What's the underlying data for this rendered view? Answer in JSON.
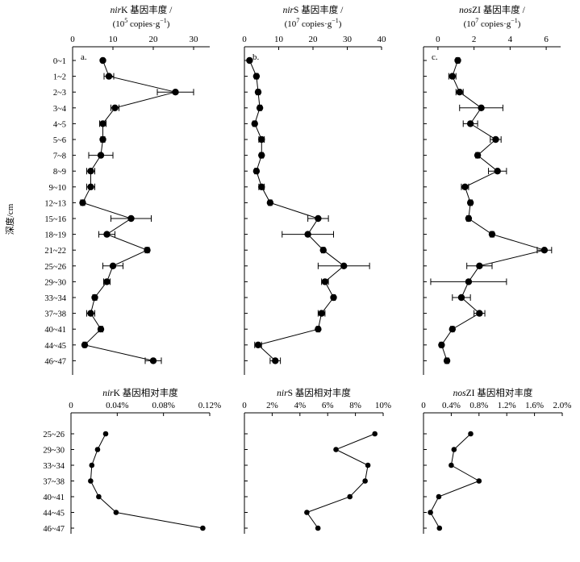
{
  "colors": {
    "ink": "#000000",
    "background": "#ffffff"
  },
  "shared": {
    "depth_axis_label": "深度/cm",
    "depth_categories_top": [
      "0~1",
      "1~2",
      "2~3",
      "3~4",
      "4~5",
      "5~6",
      "7~8",
      "8~9",
      "9~10",
      "12~13",
      "15~16",
      "18~19",
      "21~22",
      "25~26",
      "29~30",
      "33~34",
      "37~38",
      "40~41",
      "44~45",
      "46~47"
    ],
    "depth_categories_bottom": [
      "25~26",
      "29~30",
      "33~34",
      "37~38",
      "40~41",
      "44~45",
      "46~47"
    ]
  },
  "chart_data": [
    {
      "id": "top-a",
      "type": "line",
      "gene_italic": "nir",
      "gene_plain": "K",
      "title_rest": " 基因丰度 /",
      "unit_prefix": "(10",
      "unit_exp": "5",
      "unit_mid": " copies·g",
      "unit_exp2": "−1",
      "unit_suffix": ")",
      "panel_label": "a.",
      "xlim": [
        0,
        34
      ],
      "xticks": [
        0,
        10,
        20,
        30
      ],
      "xtick_labels": [
        "0",
        "10",
        "20",
        "30"
      ],
      "categories": [
        "0~1",
        "1~2",
        "2~3",
        "3~4",
        "4~5",
        "5~6",
        "7~8",
        "8~9",
        "9~10",
        "12~13",
        "15~16",
        "18~19",
        "21~22",
        "25~26",
        "29~30",
        "33~34",
        "37~38",
        "40~41",
        "44~45",
        "46~47"
      ],
      "values": [
        7.5,
        9,
        25.5,
        10.5,
        7.5,
        7.5,
        7,
        4.5,
        4.5,
        2.5,
        14.5,
        8.5,
        18.5,
        10,
        8.5,
        5.5,
        4.5,
        7,
        3,
        20
      ],
      "errors": [
        0.3,
        1.2,
        4.5,
        1,
        0.8,
        0.5,
        3,
        1,
        1,
        0.5,
        5,
        2,
        0.5,
        2.5,
        0.8,
        0.5,
        1,
        0.5,
        0.4,
        2
      ]
    },
    {
      "id": "top-b",
      "type": "line",
      "gene_italic": "nir",
      "gene_plain": "S",
      "title_rest": " 基因丰度 /",
      "unit_prefix": "(10",
      "unit_exp": "7",
      "unit_mid": " copies·g",
      "unit_exp2": "−1",
      "unit_suffix": ")",
      "panel_label": "b.",
      "xlim": [
        0,
        40
      ],
      "xticks": [
        0,
        10,
        20,
        30,
        40
      ],
      "xtick_labels": [
        "0",
        "10",
        "20",
        "30",
        "40"
      ],
      "categories": [
        "0~1",
        "1~2",
        "2~3",
        "3~4",
        "4~5",
        "5~6",
        "7~8",
        "8~9",
        "9~10",
        "12~13",
        "15~16",
        "18~19",
        "21~22",
        "25~26",
        "29~30",
        "33~34",
        "37~38",
        "40~41",
        "44~45",
        "46~47"
      ],
      "values": [
        1.5,
        3.5,
        4,
        4.5,
        3,
        5,
        5,
        3.5,
        5,
        7.5,
        21.5,
        18.5,
        23,
        29,
        23.5,
        26,
        22.5,
        21.5,
        4,
        9
      ],
      "errors": [
        0.3,
        0.5,
        0.5,
        0.5,
        0.5,
        0.8,
        0.5,
        0.5,
        0.8,
        0.5,
        3,
        7.5,
        0.5,
        7.5,
        1,
        0.5,
        1,
        0.5,
        1,
        1.5
      ]
    },
    {
      "id": "top-c",
      "type": "line",
      "gene_italic": "nos",
      "gene_plain": "ZI",
      "title_rest": " 基因丰度 /",
      "unit_prefix": "(10",
      "unit_exp": "7",
      "unit_mid": " copies·g",
      "unit_exp2": "−1",
      "unit_suffix": ")",
      "panel_label": "c.",
      "xlim": [
        -0.8,
        6.8
      ],
      "xticks": [
        0,
        2,
        4,
        6
      ],
      "xtick_labels": [
        "0",
        "2",
        "4",
        "6"
      ],
      "categories": [
        "0~1",
        "1~2",
        "2~3",
        "3~4",
        "4~5",
        "5~6",
        "7~8",
        "8~9",
        "9~10",
        "12~13",
        "15~16",
        "18~19",
        "21~22",
        "25~26",
        "29~30",
        "33~34",
        "37~38",
        "40~41",
        "44~45",
        "46~47"
      ],
      "values": [
        1.1,
        0.8,
        1.2,
        2.4,
        1.8,
        3.2,
        2.2,
        3.3,
        1.5,
        1.8,
        1.7,
        3.0,
        5.9,
        2.3,
        1.7,
        1.3,
        2.3,
        0.8,
        0.2,
        0.5
      ],
      "errors": [
        0.1,
        0.2,
        0.2,
        1.2,
        0.4,
        0.3,
        0.1,
        0.5,
        0.2,
        0.1,
        0.1,
        0.1,
        0.4,
        0.7,
        2.1,
        0.5,
        0.3,
        0.1,
        0.1,
        0.1
      ]
    },
    {
      "id": "bottom-a",
      "type": "line",
      "gene_italic": "nir",
      "gene_plain": "K",
      "title_rest": " 基因相对丰度",
      "xlim": [
        0,
        0.12
      ],
      "xticks": [
        0,
        0.04,
        0.08,
        0.12
      ],
      "xtick_labels": [
        "0",
        "0.04%",
        "0.08%",
        "0.12%"
      ],
      "categories": [
        "25~26",
        "29~30",
        "33~34",
        "37~38",
        "40~41",
        "44~45",
        "46~47"
      ],
      "values": [
        0.03,
        0.023,
        0.018,
        0.017,
        0.024,
        0.039,
        0.114
      ]
    },
    {
      "id": "bottom-b",
      "type": "line",
      "gene_italic": "nir",
      "gene_plain": "S",
      "title_rest": " 基因相对丰度",
      "xlim": [
        0,
        10
      ],
      "xticks": [
        0,
        2,
        4,
        6,
        8,
        10
      ],
      "xtick_labels": [
        "0",
        "2%",
        "4%",
        "6%",
        "8%",
        "10%"
      ],
      "categories": [
        "25~26",
        "29~30",
        "33~34",
        "37~38",
        "40~41",
        "44~45",
        "46~47"
      ],
      "values": [
        9.4,
        6.6,
        8.9,
        8.7,
        7.6,
        4.5,
        5.3
      ]
    },
    {
      "id": "bottom-c",
      "type": "line",
      "gene_italic": "nos",
      "gene_plain": "ZI",
      "title_rest": " 基因相对丰度",
      "xlim": [
        0,
        2.0
      ],
      "xticks": [
        0,
        0.4,
        0.8,
        1.2,
        1.6,
        2.0
      ],
      "xtick_labels": [
        "0",
        "0.4%",
        "0.8%",
        "1.2%",
        "1.6%",
        "2.0%"
      ],
      "categories": [
        "25~26",
        "29~30",
        "33~34",
        "37~38",
        "40~41",
        "44~45",
        "46~47"
      ],
      "values": [
        0.68,
        0.44,
        0.4,
        0.8,
        0.22,
        0.1,
        0.23
      ]
    }
  ]
}
